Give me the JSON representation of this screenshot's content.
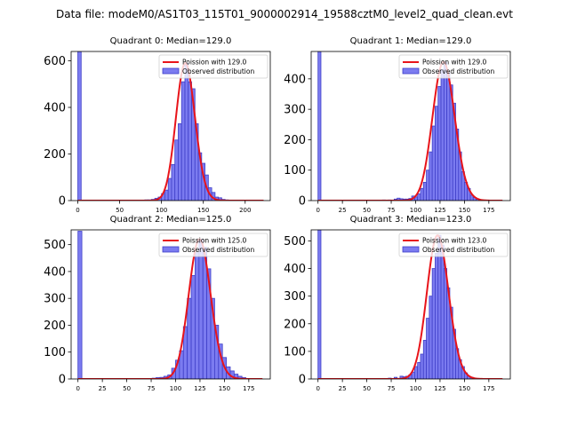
{
  "suptitle": "Data file: modeM0/AS1T03_115T01_9000002914_19588cztM0_level2_quad_clean.evt",
  "colors": {
    "bar_fill": "#7b7bf0",
    "bar_edge": "#3f3fc8",
    "curve": "#e8141a",
    "axis": "#000000"
  },
  "chart_data": [
    {
      "type": "bar",
      "title": "Quadrant 0: Median=129.0",
      "median": 129.0,
      "bin_width": 4,
      "zero_bin_value": 640,
      "xlim": [
        -8,
        230
      ],
      "ylim": [
        0,
        640
      ],
      "xticks": [
        0,
        50,
        100,
        150,
        200
      ],
      "yticks": [
        0,
        200,
        400,
        600
      ],
      "observed_values": [
        [
          64,
          1
        ],
        [
          68,
          1
        ],
        [
          72,
          1
        ],
        [
          76,
          2
        ],
        [
          80,
          3
        ],
        [
          84,
          3
        ],
        [
          88,
          5
        ],
        [
          92,
          10
        ],
        [
          96,
          15
        ],
        [
          100,
          30
        ],
        [
          104,
          45
        ],
        [
          108,
          95
        ],
        [
          112,
          155
        ],
        [
          116,
          260
        ],
        [
          120,
          330
        ],
        [
          124,
          510
        ],
        [
          128,
          590
        ],
        [
          132,
          510
        ],
        [
          136,
          480
        ],
        [
          140,
          330
        ],
        [
          144,
          205
        ],
        [
          148,
          160
        ],
        [
          152,
          110
        ],
        [
          156,
          55
        ],
        [
          160,
          35
        ],
        [
          164,
          15
        ],
        [
          168,
          12
        ],
        [
          172,
          5
        ],
        [
          176,
          3
        ]
      ],
      "legend": [
        "Poission with 129.0",
        "Observed distribution"
      ],
      "legend_position": "upper right"
    },
    {
      "type": "bar",
      "title": "Quadrant 1: Median=129.0",
      "median": 129.0,
      "bin_width": 3,
      "zero_bin_value": 490,
      "xlim": [
        -7,
        197
      ],
      "ylim": [
        0,
        490
      ],
      "xticks": [
        0,
        25,
        50,
        75,
        100,
        125,
        150,
        175
      ],
      "yticks": [
        0,
        100,
        200,
        300,
        400
      ],
      "observed_values": [
        [
          60,
          1
        ],
        [
          66,
          2
        ],
        [
          72,
          2
        ],
        [
          78,
          5
        ],
        [
          81,
          8
        ],
        [
          84,
          6
        ],
        [
          87,
          5
        ],
        [
          90,
          5
        ],
        [
          93,
          7
        ],
        [
          96,
          15
        ],
        [
          99,
          12
        ],
        [
          102,
          22
        ],
        [
          105,
          40
        ],
        [
          108,
          60
        ],
        [
          111,
          100
        ],
        [
          114,
          160
        ],
        [
          117,
          245
        ],
        [
          120,
          310
        ],
        [
          123,
          375
        ],
        [
          126,
          430
        ],
        [
          129,
          455
        ],
        [
          132,
          420
        ],
        [
          135,
          380
        ],
        [
          138,
          320
        ],
        [
          141,
          235
        ],
        [
          144,
          160
        ],
        [
          147,
          95
        ],
        [
          150,
          60
        ],
        [
          153,
          40
        ],
        [
          156,
          18
        ],
        [
          159,
          10
        ],
        [
          162,
          5
        ],
        [
          165,
          2
        ]
      ],
      "legend": [
        "Poission with 129.0",
        "Observed distribution"
      ],
      "legend_position": "upper right"
    },
    {
      "type": "bar",
      "title": "Quadrant 2: Median=125.0",
      "median": 125.0,
      "bin_width": 4,
      "zero_bin_value": 550,
      "xlim": [
        -7,
        197
      ],
      "ylim": [
        0,
        555
      ],
      "xticks": [
        0,
        25,
        50,
        75,
        100,
        125,
        150,
        175
      ],
      "yticks": [
        0,
        100,
        200,
        300,
        400,
        500
      ],
      "observed_values": [
        [
          60,
          1
        ],
        [
          70,
          2
        ],
        [
          76,
          3
        ],
        [
          80,
          5
        ],
        [
          84,
          6
        ],
        [
          88,
          10
        ],
        [
          92,
          15
        ],
        [
          96,
          40
        ],
        [
          100,
          70
        ],
        [
          104,
          105
        ],
        [
          108,
          195
        ],
        [
          112,
          300
        ],
        [
          116,
          385
        ],
        [
          120,
          470
        ],
        [
          124,
          520
        ],
        [
          128,
          490
        ],
        [
          132,
          410
        ],
        [
          136,
          300
        ],
        [
          140,
          200
        ],
        [
          144,
          130
        ],
        [
          148,
          80
        ],
        [
          152,
          45
        ],
        [
          156,
          30
        ],
        [
          160,
          18
        ],
        [
          164,
          10
        ],
        [
          168,
          5
        ],
        [
          172,
          2
        ]
      ],
      "legend": [
        "Poission with 125.0",
        "Observed distribution"
      ],
      "legend_position": "upper right"
    },
    {
      "type": "bar",
      "title": "Quadrant 3: Median=123.0",
      "median": 123.0,
      "bin_width": 3,
      "zero_bin_value": 540,
      "xlim": [
        -7,
        197
      ],
      "ylim": [
        0,
        540
      ],
      "xticks": [
        0,
        25,
        50,
        75,
        100,
        125,
        150,
        175
      ],
      "yticks": [
        0,
        100,
        200,
        300,
        400,
        500
      ],
      "observed_values": [
        [
          60,
          1
        ],
        [
          66,
          2
        ],
        [
          72,
          3
        ],
        [
          78,
          6
        ],
        [
          84,
          10
        ],
        [
          87,
          8
        ],
        [
          90,
          10
        ],
        [
          93,
          15
        ],
        [
          96,
          25
        ],
        [
          99,
          45
        ],
        [
          102,
          60
        ],
        [
          105,
          90
        ],
        [
          108,
          140
        ],
        [
          111,
          220
        ],
        [
          114,
          300
        ],
        [
          117,
          400
        ],
        [
          120,
          455
        ],
        [
          123,
          520
        ],
        [
          126,
          485
        ],
        [
          129,
          400
        ],
        [
          132,
          330
        ],
        [
          135,
          260
        ],
        [
          138,
          180
        ],
        [
          141,
          110
        ],
        [
          144,
          70
        ],
        [
          147,
          45
        ],
        [
          150,
          22
        ],
        [
          153,
          10
        ],
        [
          156,
          6
        ],
        [
          159,
          3
        ]
      ],
      "legend": [
        "Poission with 123.0",
        "Observed distribution"
      ],
      "legend_position": "upper right"
    }
  ]
}
